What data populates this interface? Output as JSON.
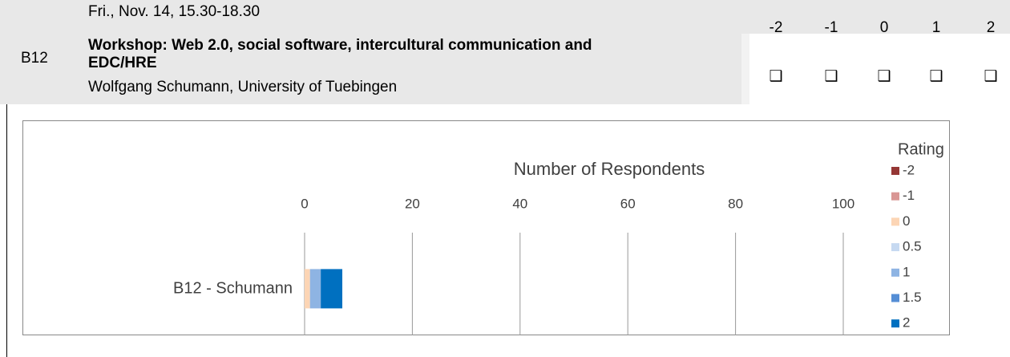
{
  "header": {
    "code": "B12",
    "date": "Fri., Nov. 14, 15.30-18.30",
    "title": "Workshop: Web 2.0, social software, intercultural communication and EDC/HRE",
    "speaker": "Wolfgang Schumann, University of Tuebingen"
  },
  "scale": {
    "labels": [
      "-2",
      "-1",
      "0",
      "1",
      "2"
    ],
    "boxes": [
      "❑",
      "❑",
      "❑",
      "❑",
      "❑"
    ]
  },
  "chart_data": {
    "type": "stacked_bar_horizontal",
    "title": "Number of Respondents",
    "legend_title": "Rating",
    "legend_position": "right",
    "categories": [
      "B12 - Schumann"
    ],
    "series": [
      {
        "name": "-2",
        "color": "#953735",
        "values": [
          0
        ]
      },
      {
        "name": "-1",
        "color": "#d99694",
        "values": [
          0
        ]
      },
      {
        "name": "0",
        "color": "#fcd5b5",
        "values": [
          1
        ]
      },
      {
        "name": "0.5",
        "color": "#c6d9f1",
        "values": [
          0
        ]
      },
      {
        "name": "1",
        "color": "#8eb4e3",
        "values": [
          2
        ]
      },
      {
        "name": "1.5",
        "color": "#558ed5",
        "values": [
          0
        ]
      },
      {
        "name": "2",
        "color": "#0070c0",
        "values": [
          4
        ]
      }
    ],
    "xlim": [
      0,
      100
    ],
    "xticks": [
      0,
      20,
      40,
      60,
      80,
      100
    ],
    "grid": true
  }
}
